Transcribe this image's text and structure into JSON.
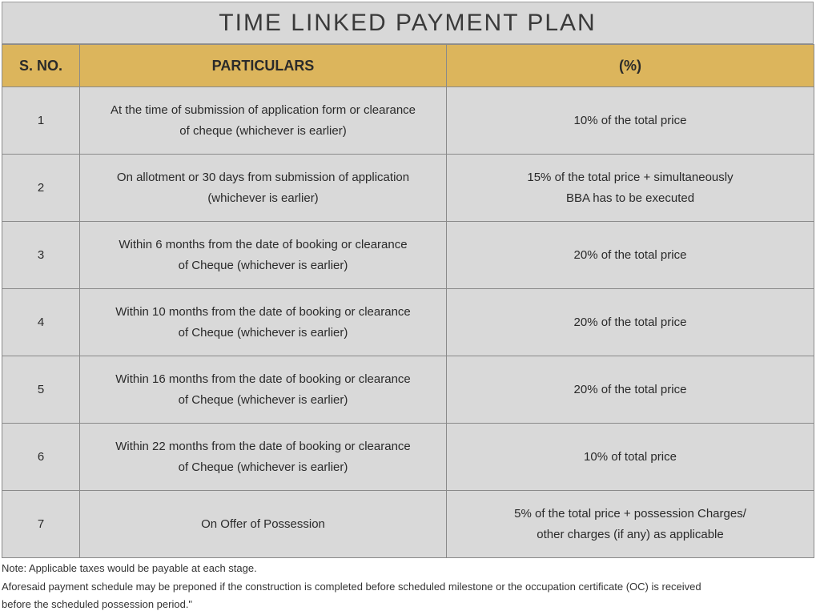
{
  "title": "TIME LINKED PAYMENT PLAN",
  "table": {
    "headers": [
      "S. NO.",
      "PARTICULARS",
      "(%)"
    ],
    "rows": [
      {
        "no": "1",
        "particulars": [
          "At the time of submission of application form or clearance",
          "of cheque (whichever is earlier)"
        ],
        "percent": [
          "10% of the total price"
        ]
      },
      {
        "no": "2",
        "particulars": [
          "On allotment or 30 days from submission of application",
          "(whichever is earlier)"
        ],
        "percent": [
          "15% of the total price + simultaneously",
          "BBA has to be executed"
        ]
      },
      {
        "no": "3",
        "particulars": [
          "Within 6 months from the date of booking or clearance",
          "of Cheque (whichever is earlier)"
        ],
        "percent": [
          "20% of the total price"
        ]
      },
      {
        "no": "4",
        "particulars": [
          "Within 10 months from the date of booking or clearance",
          "of Cheque (whichever is earlier)"
        ],
        "percent": [
          "20% of the total price"
        ]
      },
      {
        "no": "5",
        "particulars": [
          "Within 16 months from the date of booking or clearance",
          "of Cheque (whichever is earlier)"
        ],
        "percent": [
          "20% of the total price"
        ]
      },
      {
        "no": "6",
        "particulars": [
          "Within 22 months from the date of booking or clearance",
          "of Cheque (whichever is earlier)"
        ],
        "percent": [
          "10% of total price"
        ]
      },
      {
        "no": "7",
        "particulars": [
          "On Offer of Possession"
        ],
        "percent": [
          "5% of the total price + possession Charges/",
          "other charges (if any) as applicable"
        ]
      }
    ]
  },
  "notes": [
    "Note: Applicable taxes would be payable at each stage.",
    "Aforesaid payment schedule may be preponed if the construction is completed before scheduled milestone or the occupation certificate (OC) is received",
    "before the scheduled possession period.\""
  ]
}
